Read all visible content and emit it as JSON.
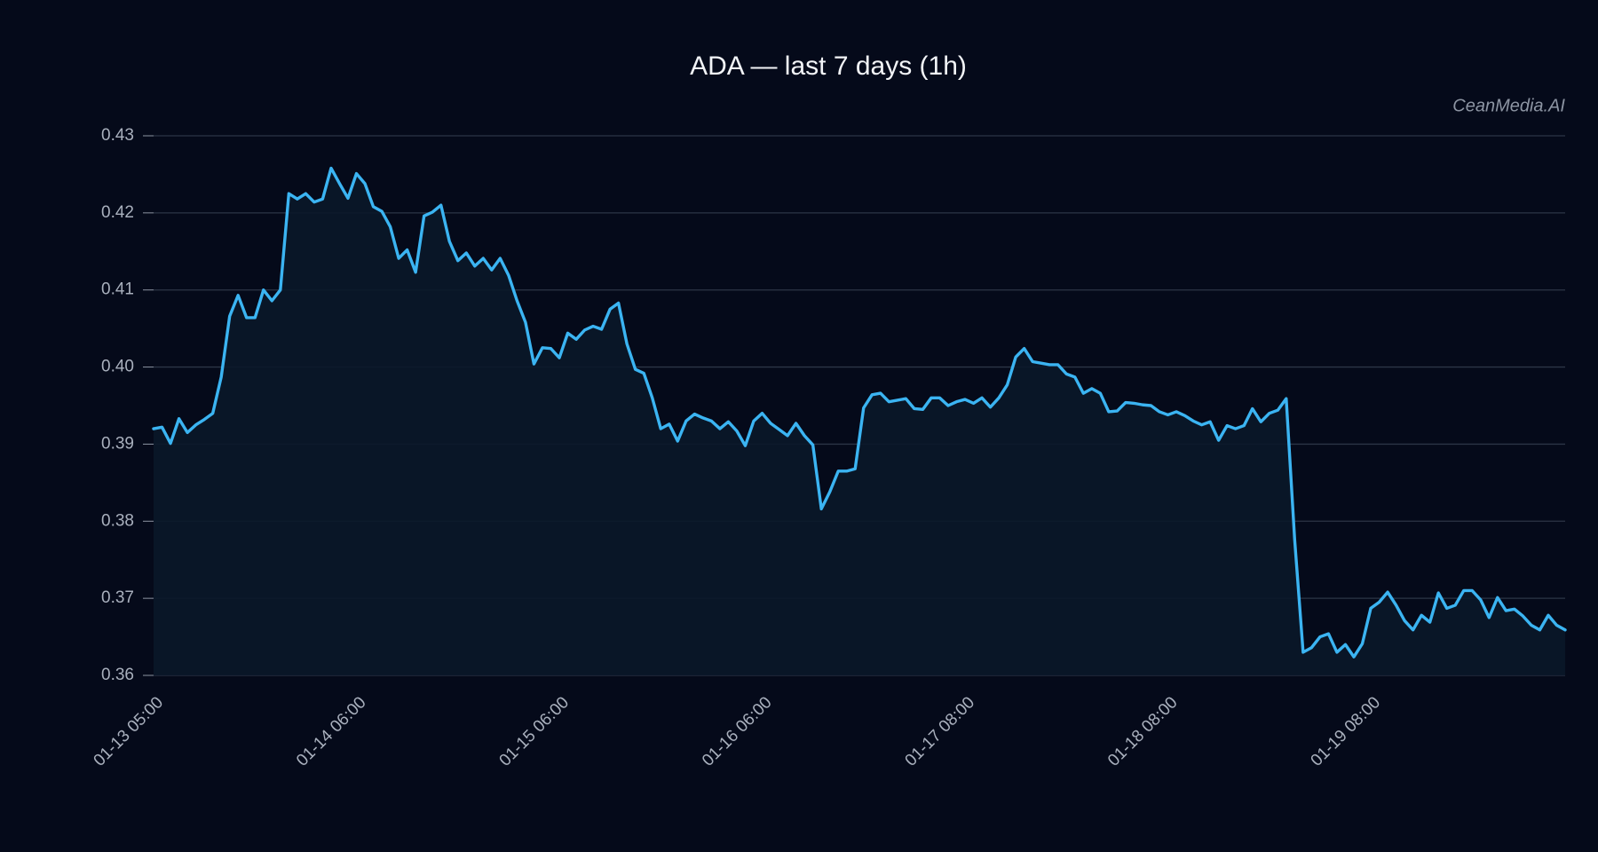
{
  "chart_data": {
    "type": "line",
    "title": "ADA — last 7 days (1h)",
    "watermark": "CeanMedia.AI",
    "color": "#3bb4f2",
    "area_color": "#0a1729",
    "grid": true,
    "ylim": [
      0.36,
      0.43
    ],
    "yticks": [
      0.36,
      0.37,
      0.38,
      0.39,
      {
        "value": 0.4,
        "label": "0.40"
      },
      0.41,
      0.42,
      0.43
    ],
    "categories": [
      "01-13 05:00",
      null,
      null,
      null,
      null,
      null,
      null,
      null,
      null,
      null,
      null,
      null,
      null,
      null,
      null,
      null,
      null,
      null,
      null,
      null,
      null,
      null,
      null,
      null,
      "01-14 06:00",
      null,
      null,
      null,
      null,
      null,
      null,
      null,
      null,
      null,
      null,
      null,
      null,
      null,
      null,
      null,
      null,
      null,
      null,
      null,
      null,
      null,
      null,
      null,
      "01-15 06:00",
      null,
      null,
      null,
      null,
      null,
      null,
      null,
      null,
      null,
      null,
      null,
      null,
      null,
      null,
      null,
      null,
      null,
      null,
      null,
      null,
      null,
      null,
      null,
      "01-16 06:00",
      null,
      null,
      null,
      null,
      null,
      null,
      null,
      null,
      null,
      null,
      null,
      null,
      null,
      null,
      null,
      null,
      null,
      null,
      null,
      null,
      null,
      null,
      null,
      "01-17 08:00",
      null,
      null,
      null,
      null,
      null,
      null,
      null,
      null,
      null,
      null,
      null,
      null,
      null,
      null,
      null,
      null,
      null,
      null,
      null,
      null,
      null,
      null,
      null,
      "01-18 08:00",
      null,
      null,
      null,
      null,
      null,
      null,
      null,
      null,
      null,
      null,
      null,
      null,
      null,
      null,
      null,
      null,
      null,
      null,
      null,
      null,
      null,
      null,
      null,
      "01-19 08:00",
      null,
      null,
      null,
      null,
      null,
      null,
      null,
      null,
      null,
      null,
      null,
      null,
      null,
      null,
      null,
      null,
      null,
      null,
      null,
      null,
      null,
      null,
      null
    ],
    "values": [
      0.392,
      0.3922,
      0.3901,
      0.3933,
      0.3915,
      0.3925,
      0.3932,
      0.394,
      0.3987,
      0.4066,
      0.4093,
      0.4064,
      0.4064,
      0.41,
      0.4086,
      0.41,
      0.4225,
      0.4218,
      0.4225,
      0.4214,
      0.4218,
      0.4258,
      0.4238,
      0.4219,
      0.4251,
      0.4238,
      0.4208,
      0.4202,
      0.4182,
      0.4141,
      0.4152,
      0.4123,
      0.4196,
      0.4201,
      0.421,
      0.4163,
      0.4138,
      0.4148,
      0.4131,
      0.4141,
      0.4126,
      0.4141,
      0.4119,
      0.4086,
      0.4058,
      0.4004,
      0.4025,
      0.4024,
      0.4012,
      0.4044,
      0.4036,
      0.4048,
      0.4053,
      0.4049,
      0.4075,
      0.4083,
      0.403,
      0.3997,
      0.3992,
      0.396,
      0.392,
      0.3926,
      0.3904,
      0.393,
      0.3939,
      0.3934,
      0.393,
      0.392,
      0.3929,
      0.3917,
      0.3898,
      0.393,
      0.394,
      0.3927,
      0.3919,
      0.3911,
      0.3927,
      0.3911,
      0.3899,
      0.3816,
      0.3838,
      0.3865,
      0.3865,
      0.3868,
      0.3947,
      0.3964,
      0.3966,
      0.3955,
      0.3957,
      0.3959,
      0.3946,
      0.3945,
      0.396,
      0.396,
      0.395,
      0.3955,
      0.3958,
      0.3953,
      0.396,
      0.3948,
      0.396,
      0.3977,
      0.4013,
      0.4024,
      0.4007,
      0.4005,
      0.4003,
      0.4003,
      0.3991,
      0.3987,
      0.3966,
      0.3972,
      0.3966,
      0.3942,
      0.3943,
      0.3954,
      0.3953,
      0.3951,
      0.395,
      0.3942,
      0.3938,
      0.3942,
      0.3937,
      0.393,
      0.3925,
      0.3929,
      0.3905,
      0.3924,
      0.392,
      0.3924,
      0.3946,
      0.3929,
      0.394,
      0.3944,
      0.3959,
      0.3776,
      0.363,
      0.3636,
      0.365,
      0.3654,
      0.363,
      0.364,
      0.3624,
      0.3641,
      0.3687,
      0.3695,
      0.3708,
      0.3691,
      0.3671,
      0.3659,
      0.3678,
      0.3669,
      0.3707,
      0.3687,
      0.3691,
      0.371,
      0.371,
      0.3698,
      0.3675,
      0.3701,
      0.3684,
      0.3686,
      0.3677,
      0.3665,
      0.3659,
      0.3678,
      0.3665,
      0.3659
    ]
  }
}
